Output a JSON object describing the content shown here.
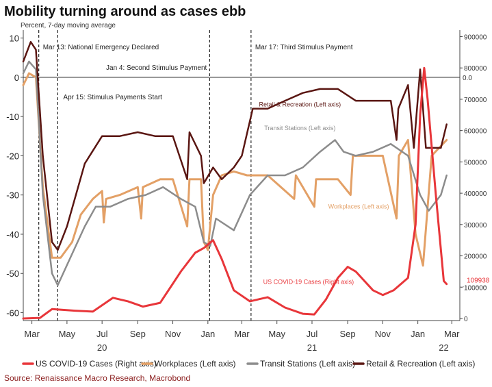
{
  "title": "Mobility turning around as cases ebb",
  "subtitle": "Percent, 7-day moving average",
  "source": "Source: Renaissance Macro Research, Macrobond",
  "colors": {
    "cases": "#e8363a",
    "workplaces": "#e3a066",
    "transit": "#8c8c8c",
    "retail": "#5a1612"
  },
  "chart_data": {
    "type": "line",
    "left_axis": {
      "ylim": [
        -62,
        12
      ],
      "ticks": [
        10,
        0,
        -10,
        -20,
        -30,
        -40,
        -50,
        -60
      ],
      "tick_labels": [
        "10",
        "0",
        "-10",
        "-20",
        "-30",
        "-40",
        "-50",
        "-60"
      ]
    },
    "right_axis": {
      "ylim": [
        0,
        900000
      ],
      "ticks": [
        900000,
        800000,
        700000,
        600000,
        500000,
        400000,
        300000,
        200000,
        100000,
        0
      ],
      "tick_labels": [
        "900000",
        "800000",
        "700000",
        "600000",
        "500000",
        "400000",
        "300000",
        "200000",
        "100000",
        "0"
      ],
      "zero_marker_label": "0.0",
      "last_value_label": "109938"
    },
    "x_axis": {
      "range": [
        "2020-02-15",
        "2022-03-15"
      ],
      "ticks": [
        "2020-03-01",
        "2020-05-01",
        "2020-07-01",
        "2020-09-01",
        "2020-11-01",
        "2021-01-01",
        "2021-03-01",
        "2021-05-01",
        "2021-07-01",
        "2021-09-01",
        "2021-11-01",
        "2022-01-01",
        "2022-03-01"
      ],
      "tick_labels": [
        "Mar",
        "May",
        "Jul",
        "Sep",
        "Nov",
        "Jan",
        "Mar",
        "May",
        "Jul",
        "Sep",
        "Nov",
        "Jan",
        "Mar"
      ],
      "year_labels": [
        {
          "label": "20",
          "date": "2020-07-01"
        },
        {
          "label": "21",
          "date": "2021-07-01"
        },
        {
          "label": "22",
          "date": "2022-02-15"
        }
      ]
    },
    "events": [
      {
        "date": "2020-03-13",
        "label": "Mar 13: National Emergency Declared"
      },
      {
        "date": "2020-04-15",
        "label": "Apr 15: Stimulus Payments Start"
      },
      {
        "date": "2021-01-04",
        "label": "Jan 4: Second Stimulus Payment"
      },
      {
        "date": "2021-03-17",
        "label": "Mar 17: Third Stimulus Payment"
      }
    ],
    "series": [
      {
        "name": "US COVID-19 Cases (Right axis)",
        "axis": "right",
        "label": "US COVID-19 Cases (Right axis)",
        "points": [
          [
            "2020-02-15",
            0
          ],
          [
            "2020-03-15",
            2000
          ],
          [
            "2020-04-05",
            30000
          ],
          [
            "2020-05-15",
            25000
          ],
          [
            "2020-06-15",
            22000
          ],
          [
            "2020-07-20",
            66000
          ],
          [
            "2020-08-15",
            55000
          ],
          [
            "2020-09-10",
            38000
          ],
          [
            "2020-10-10",
            50000
          ],
          [
            "2020-11-15",
            150000
          ],
          [
            "2020-12-10",
            210000
          ],
          [
            "2020-12-25",
            225000
          ],
          [
            "2021-01-10",
            250000
          ],
          [
            "2021-01-25",
            190000
          ],
          [
            "2021-02-15",
            90000
          ],
          [
            "2021-03-15",
            55000
          ],
          [
            "2021-04-15",
            68000
          ],
          [
            "2021-05-15",
            35000
          ],
          [
            "2021-06-15",
            15000
          ],
          [
            "2021-07-05",
            13000
          ],
          [
            "2021-07-25",
            60000
          ],
          [
            "2021-08-15",
            130000
          ],
          [
            "2021-09-01",
            165000
          ],
          [
            "2021-09-15",
            150000
          ],
          [
            "2021-10-15",
            90000
          ],
          [
            "2021-11-01",
            75000
          ],
          [
            "2021-11-20",
            90000
          ],
          [
            "2021-12-15",
            130000
          ],
          [
            "2021-12-28",
            300000
          ],
          [
            "2022-01-05",
            650000
          ],
          [
            "2022-01-12",
            800000
          ],
          [
            "2022-01-18",
            700000
          ],
          [
            "2022-02-01",
            400000
          ],
          [
            "2022-02-15",
            120000
          ],
          [
            "2022-02-20",
            109938
          ]
        ]
      },
      {
        "name": "Workplaces (Left axis)",
        "axis": "left",
        "label": "Workplaces (Left axis)",
        "points": [
          [
            "2020-02-15",
            -2
          ],
          [
            "2020-02-25",
            1
          ],
          [
            "2020-03-08",
            0
          ],
          [
            "2020-03-20",
            -28
          ],
          [
            "2020-04-05",
            -46
          ],
          [
            "2020-04-20",
            -46
          ],
          [
            "2020-05-10",
            -42
          ],
          [
            "2020-05-25",
            -35
          ],
          [
            "2020-06-15",
            -31
          ],
          [
            "2020-07-01",
            -29
          ],
          [
            "2020-07-04",
            -37
          ],
          [
            "2020-07-08",
            -31
          ],
          [
            "2020-08-01",
            -30
          ],
          [
            "2020-09-01",
            -28
          ],
          [
            "2020-09-07",
            -36
          ],
          [
            "2020-09-10",
            -28
          ],
          [
            "2020-10-10",
            -26
          ],
          [
            "2020-11-01",
            -26
          ],
          [
            "2020-11-26",
            -38
          ],
          [
            "2020-11-30",
            -26
          ],
          [
            "2020-12-20",
            -26
          ],
          [
            "2020-12-25",
            -42
          ],
          [
            "2021-01-01",
            -44
          ],
          [
            "2021-01-10",
            -30
          ],
          [
            "2021-01-25",
            -25
          ],
          [
            "2021-02-15",
            -24
          ],
          [
            "2021-03-10",
            -25
          ],
          [
            "2021-04-15",
            -25
          ],
          [
            "2021-05-31",
            -31
          ],
          [
            "2021-06-03",
            -25
          ],
          [
            "2021-07-05",
            -33
          ],
          [
            "2021-07-08",
            -26
          ],
          [
            "2021-08-15",
            -26
          ],
          [
            "2021-09-06",
            -30
          ],
          [
            "2021-09-10",
            -20
          ],
          [
            "2021-10-15",
            -20
          ],
          [
            "2021-11-01",
            -20
          ],
          [
            "2021-11-25",
            -36
          ],
          [
            "2021-11-29",
            -20
          ],
          [
            "2021-12-15",
            -16
          ],
          [
            "2021-12-28",
            -40
          ],
          [
            "2022-01-10",
            -48
          ],
          [
            "2022-01-25",
            -20
          ],
          [
            "2022-02-20",
            -16
          ]
        ]
      },
      {
        "name": "Transit Stations (Left axis)",
        "axis": "left",
        "label": "Transit Stations (Left axis)",
        "points": [
          [
            "2020-02-15",
            1
          ],
          [
            "2020-02-25",
            4
          ],
          [
            "2020-03-08",
            2
          ],
          [
            "2020-03-20",
            -30
          ],
          [
            "2020-04-05",
            -50
          ],
          [
            "2020-04-15",
            -53
          ],
          [
            "2020-05-10",
            -45
          ],
          [
            "2020-06-01",
            -38
          ],
          [
            "2020-06-20",
            -33
          ],
          [
            "2020-07-15",
            -33
          ],
          [
            "2020-08-15",
            -31
          ],
          [
            "2020-09-15",
            -30
          ],
          [
            "2020-10-15",
            -28
          ],
          [
            "2020-11-15",
            -31
          ],
          [
            "2020-12-10",
            -33
          ],
          [
            "2020-12-25",
            -42
          ],
          [
            "2021-01-05",
            -43
          ],
          [
            "2021-01-15",
            -36
          ],
          [
            "2021-02-15",
            -39
          ],
          [
            "2021-03-15",
            -30
          ],
          [
            "2021-04-15",
            -25
          ],
          [
            "2021-05-15",
            -25
          ],
          [
            "2021-06-15",
            -23
          ],
          [
            "2021-07-15",
            -19
          ],
          [
            "2021-08-10",
            -16
          ],
          [
            "2021-08-25",
            -19
          ],
          [
            "2021-09-15",
            -20
          ],
          [
            "2021-10-15",
            -19
          ],
          [
            "2021-11-15",
            -17
          ],
          [
            "2021-12-15",
            -20
          ],
          [
            "2022-01-05",
            -30
          ],
          [
            "2022-01-20",
            -34
          ],
          [
            "2022-02-10",
            -30
          ],
          [
            "2022-02-20",
            -25
          ]
        ]
      },
      {
        "name": "Retail & Recreation (Left axis)",
        "axis": "left",
        "label": "Retail & Recreation (Left axis)",
        "points": [
          [
            "2020-02-15",
            4
          ],
          [
            "2020-02-28",
            9
          ],
          [
            "2020-03-08",
            7
          ],
          [
            "2020-03-20",
            -20
          ],
          [
            "2020-04-05",
            -42
          ],
          [
            "2020-04-15",
            -44
          ],
          [
            "2020-05-01",
            -38
          ],
          [
            "2020-06-01",
            -22
          ],
          [
            "2020-07-01",
            -15
          ],
          [
            "2020-08-01",
            -15
          ],
          [
            "2020-09-01",
            -14
          ],
          [
            "2020-10-01",
            -15
          ],
          [
            "2020-11-01",
            -15
          ],
          [
            "2020-11-26",
            -26
          ],
          [
            "2020-11-30",
            -14
          ],
          [
            "2020-12-20",
            -20
          ],
          [
            "2020-12-25",
            -27
          ],
          [
            "2021-01-10",
            -23
          ],
          [
            "2021-01-25",
            -26
          ],
          [
            "2021-02-15",
            -23
          ],
          [
            "2021-03-01",
            -20
          ],
          [
            "2021-03-20",
            -8
          ],
          [
            "2021-04-15",
            -8
          ],
          [
            "2021-05-15",
            -6
          ],
          [
            "2021-06-15",
            -4
          ],
          [
            "2021-07-15",
            -3
          ],
          [
            "2021-08-15",
            -3
          ],
          [
            "2021-09-15",
            -6
          ],
          [
            "2021-10-15",
            -6
          ],
          [
            "2021-11-15",
            -6
          ],
          [
            "2021-11-25",
            -16
          ],
          [
            "2021-11-28",
            -8
          ],
          [
            "2021-12-15",
            -2
          ],
          [
            "2021-12-25",
            -18
          ],
          [
            "2022-01-05",
            2
          ],
          [
            "2022-01-15",
            -18
          ],
          [
            "2022-02-10",
            -18
          ],
          [
            "2022-02-20",
            -12
          ]
        ]
      }
    ],
    "legend": {
      "position": "bottom",
      "entries": [
        {
          "label": "US COVID-19 Cases (Right axis)",
          "color": "#e8363a"
        },
        {
          "label": "Workplaces (Left axis)",
          "color": "#e3a066"
        },
        {
          "label": "Transit Stations (Left axis)",
          "color": "#8c8c8c"
        },
        {
          "label": "Retail & Recreation (Left axis)",
          "color": "#5a1612"
        }
      ]
    }
  }
}
